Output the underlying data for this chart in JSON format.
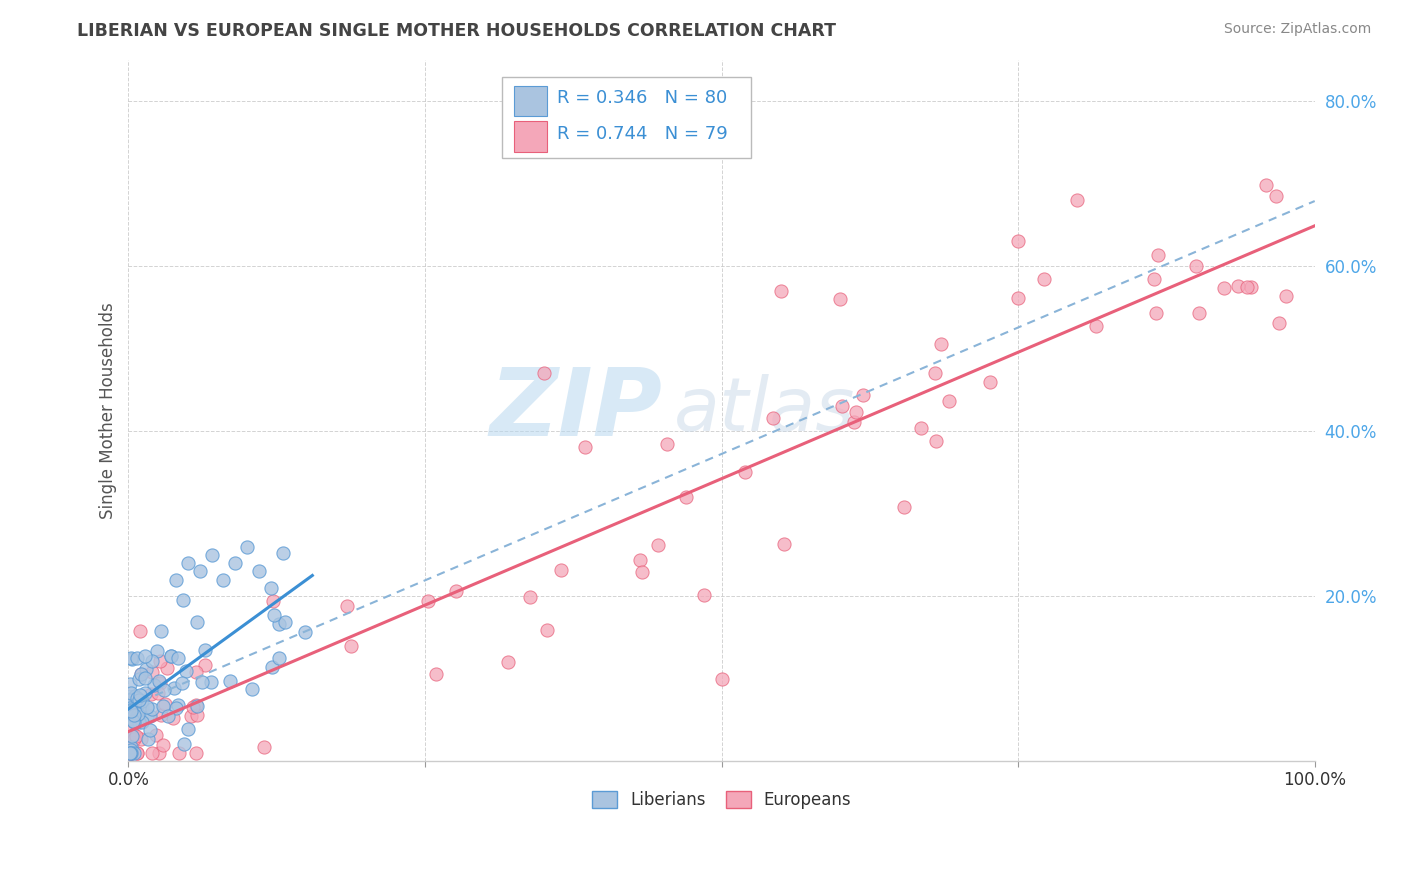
{
  "title": "LIBERIAN VS EUROPEAN SINGLE MOTHER HOUSEHOLDS CORRELATION CHART",
  "source": "Source: ZipAtlas.com",
  "ylabel": "Single Mother Households",
  "xlim": [
    0.0,
    1.0
  ],
  "ylim": [
    0.0,
    0.85
  ],
  "xticks": [
    0.0,
    0.25,
    0.5,
    0.75,
    1.0
  ],
  "xticklabels": [
    "0.0%",
    "",
    "",
    "",
    "100.0%"
  ],
  "yticks": [
    0.2,
    0.4,
    0.6,
    0.8
  ],
  "yticklabels": [
    "20.0%",
    "40.0%",
    "60.0%",
    "80.0%"
  ],
  "liberian_color": "#aac4e0",
  "european_color": "#f4a7b9",
  "liberian_edge": "#5b9bd5",
  "european_edge": "#e8607a",
  "trend_liberian_color": "#3b8fd4",
  "trend_european_color": "#e8607a",
  "dashed_line_color": "#8ab4d8",
  "R_liberian": 0.346,
  "N_liberian": 80,
  "R_european": 0.744,
  "N_european": 79,
  "watermark_zip": "ZIP",
  "watermark_atlas": "atlas",
  "background_color": "#ffffff",
  "grid_color": "#c8c8c8",
  "ytick_color": "#4da6e8",
  "xtick_color": "#333333",
  "title_color": "#444444",
  "source_color": "#888888",
  "ylabel_color": "#555555"
}
